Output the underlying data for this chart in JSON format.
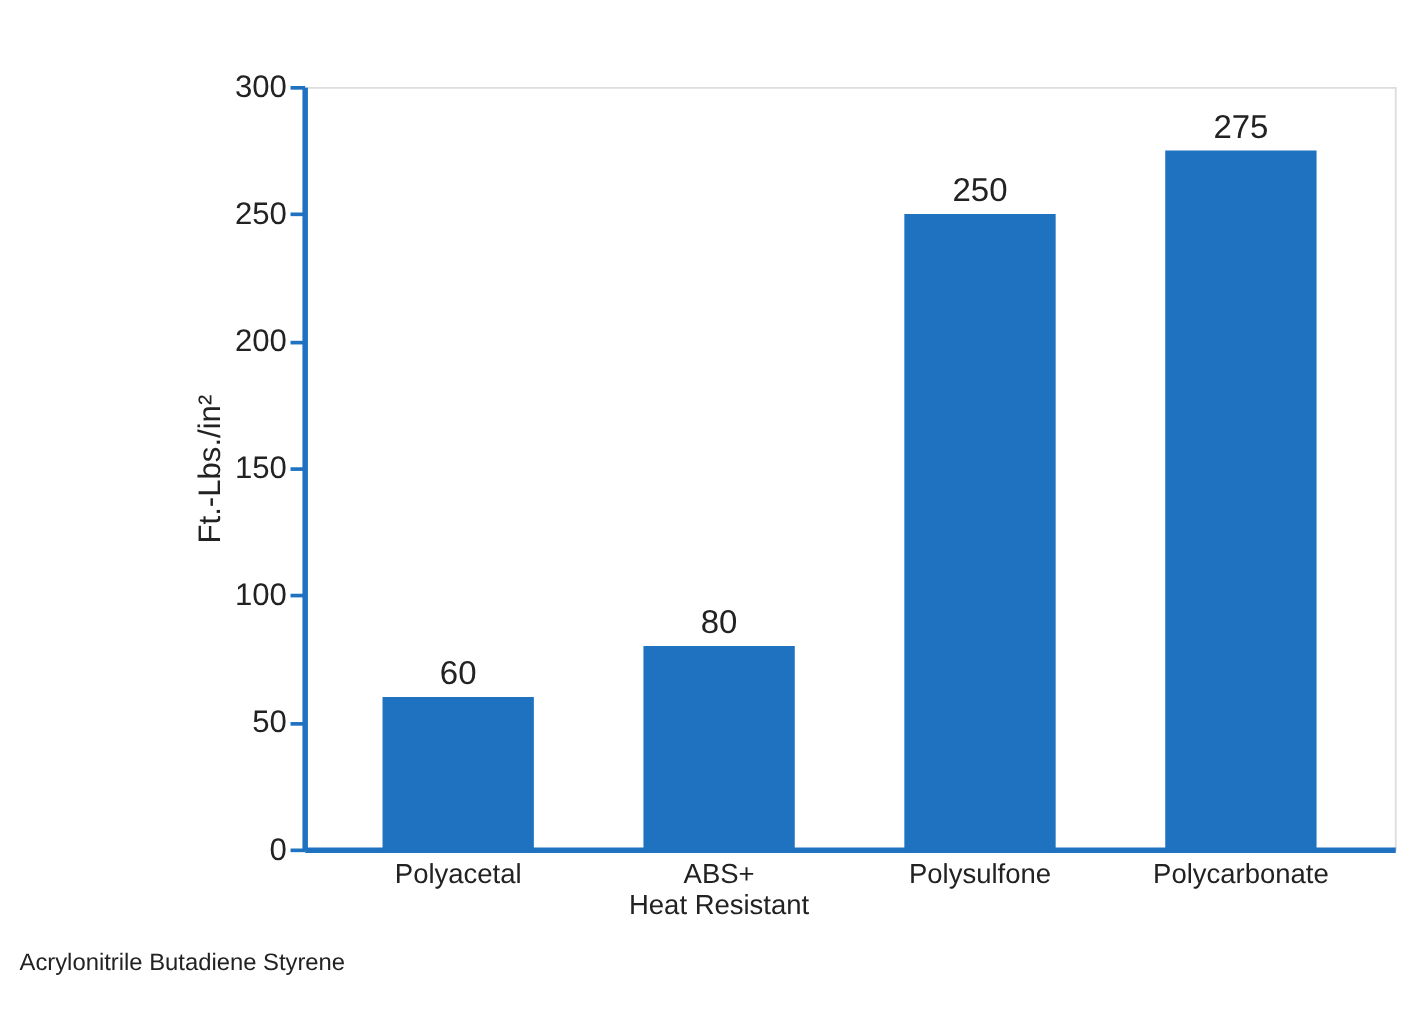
{
  "chart_data": {
    "type": "bar",
    "ylabel": "Ft.-Lbs./in²",
    "categories": [
      "Polyacetal",
      "ABS+\nHeat Resistant",
      "Polysulfone",
      "Polycarbonate"
    ],
    "values": [
      60,
      80,
      250,
      275
    ],
    "color": "#1f72c0",
    "ylim": [
      0,
      300
    ],
    "yticks": [
      0,
      50,
      100,
      150,
      200,
      250,
      300
    ],
    "grid": false,
    "data_labels": true,
    "annotations": [
      "Acrylonitrile Butadiene Styrene"
    ]
  }
}
